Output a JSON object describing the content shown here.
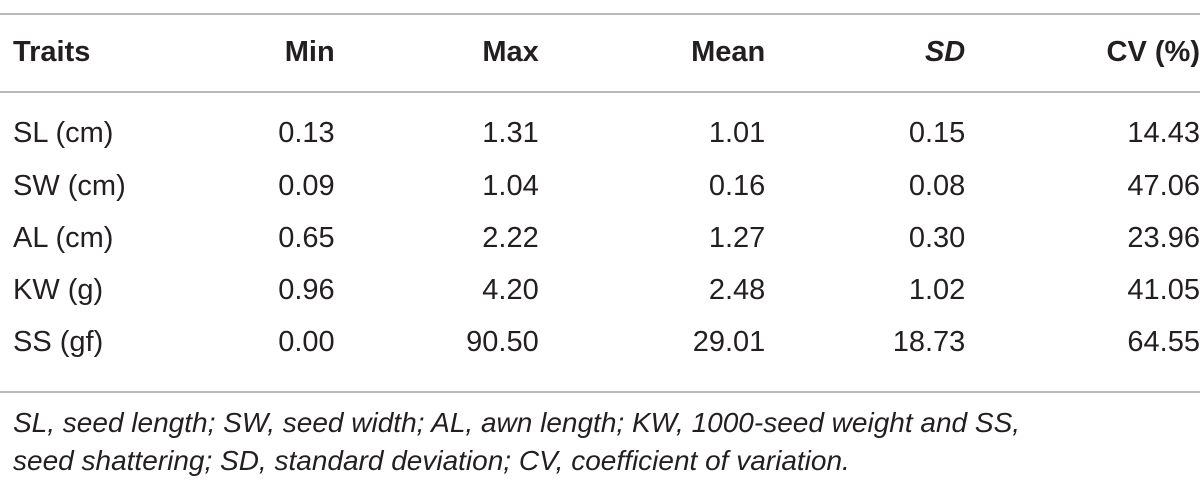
{
  "table": {
    "headers": [
      "Traits",
      "Min",
      "Max",
      "Mean",
      "SD",
      "CV (%)"
    ],
    "rows": [
      [
        "SL (cm)",
        "0.13",
        "1.31",
        "1.01",
        "0.15",
        "14.43"
      ],
      [
        "SW (cm)",
        "0.09",
        "1.04",
        "0.16",
        "0.08",
        "47.06"
      ],
      [
        "AL (cm)",
        "0.65",
        "2.22",
        "1.27",
        "0.30",
        "23.96"
      ],
      [
        "KW (g)",
        "0.96",
        "4.20",
        "2.48",
        "1.02",
        "41.05"
      ],
      [
        "SS (gf)",
        "0.00",
        "90.50",
        "29.01",
        "18.73",
        "64.55"
      ]
    ]
  },
  "footnote": {
    "line1": "SL, seed length; SW, seed width; AL, awn length; KW, 1000-seed weight and SS,",
    "line2": "seed shattering; SD, standard deviation; CV, coefficient of variation."
  }
}
